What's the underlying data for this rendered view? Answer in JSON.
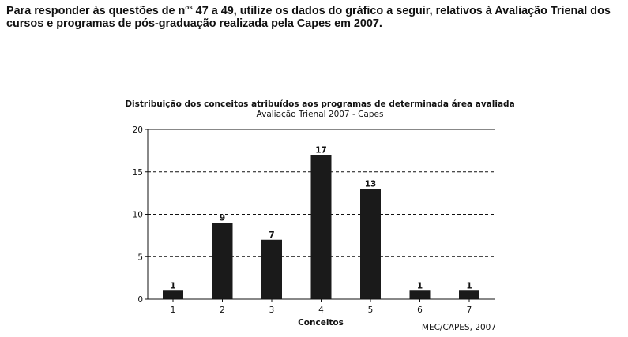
{
  "intro": {
    "line1_before": "Para responder às questões de n",
    "line1_sup": "os",
    "line1_after": " 47 a 49, utilize os dados do gráfico a seguir, relativos à Avaliação Trienal dos",
    "line2": "cursos e programas de pós-graduação realizada pela Capes em 2007."
  },
  "chart_data": {
    "type": "bar",
    "title": "Distribuição dos conceitos atribuídos aos programas de determinada área avaliada",
    "subtitle": "Avaliação Trienal 2007 - Capes",
    "categories": [
      "1",
      "2",
      "3",
      "4",
      "5",
      "6",
      "7"
    ],
    "values": [
      1,
      9,
      7,
      17,
      13,
      1,
      1
    ],
    "xlabel": "Conceitos",
    "ylabel": "",
    "ylim": [
      0,
      20
    ],
    "yticks": [
      0,
      5,
      10,
      15,
      20
    ],
    "grid": "dashed horizontal",
    "bar_color": "#1a1a1a",
    "source": "MEC/CAPES, 2007"
  }
}
